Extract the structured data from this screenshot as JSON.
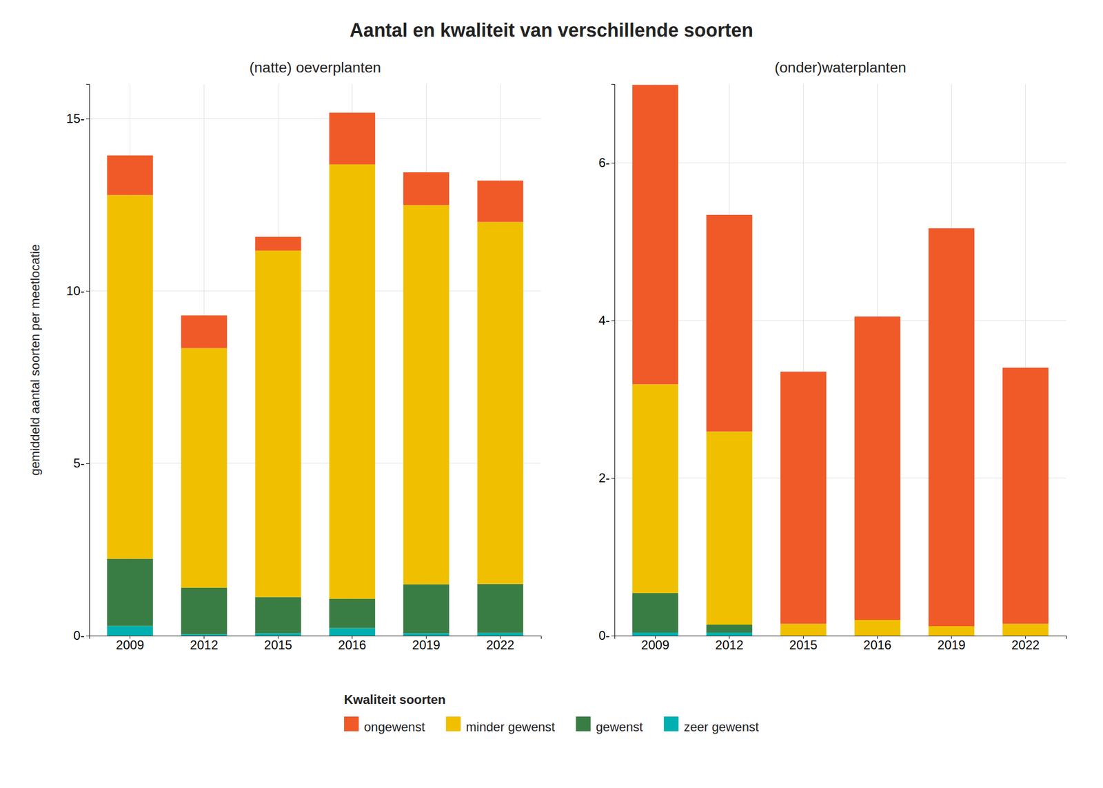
{
  "title": "Aantal en kwaliteit van verschillende soorten",
  "legend_title": "Kwaliteit soorten",
  "legend": "bottom",
  "chart_data": [
    {
      "type": "bar",
      "stacked": true,
      "grid": true,
      "title": "(natte) oeverplanten",
      "ylabel": "gemiddeld aantal soorten per meetlocatie",
      "categories": [
        "2009",
        "2012",
        "2015",
        "2016",
        "2019",
        "2022"
      ],
      "series": [
        {
          "name": "zeer gewenst",
          "color": "#00B0B0",
          "values": [
            0.28,
            0.04,
            0.07,
            0.22,
            0.07,
            0.08
          ]
        },
        {
          "name": "gewenst",
          "color": "#3A7D44",
          "values": [
            1.95,
            1.35,
            1.05,
            0.85,
            1.42,
            1.42
          ]
        },
        {
          "name": "minder gewenst",
          "color": "#F0C000",
          "values": [
            10.55,
            6.95,
            10.05,
            12.6,
            11.0,
            10.5
          ]
        },
        {
          "name": "ongewenst",
          "color": "#F05A28",
          "values": [
            1.15,
            0.95,
            0.4,
            1.5,
            0.95,
            1.2
          ]
        }
      ],
      "ylim": [
        0,
        16
      ],
      "yticks": [
        {
          "value": 0,
          "label": "0-"
        },
        {
          "value": 5,
          "label": "5-"
        },
        {
          "value": 10,
          "label": "10-"
        },
        {
          "value": 15,
          "label": "15-"
        }
      ]
    },
    {
      "type": "bar",
      "stacked": true,
      "grid": true,
      "title": "(onder)waterplanten",
      "categories": [
        "2009",
        "2012",
        "2015",
        "2016",
        "2019",
        "2022"
      ],
      "series": [
        {
          "name": "zeer gewenst",
          "color": "#00B0B0",
          "values": [
            0.04,
            0.04,
            0.0,
            0.0,
            0.0,
            0.0
          ]
        },
        {
          "name": "gewenst",
          "color": "#3A7D44",
          "values": [
            0.5,
            0.1,
            0.0,
            0.0,
            0.0,
            0.0
          ]
        },
        {
          "name": "minder gewenst",
          "color": "#F0C000",
          "values": [
            2.65,
            2.45,
            0.15,
            0.2,
            0.12,
            0.15
          ]
        },
        {
          "name": "ongewenst",
          "color": "#F05A28",
          "values": [
            3.8,
            2.75,
            3.2,
            3.85,
            5.05,
            3.25
          ]
        }
      ],
      "ylim": [
        0,
        7
      ],
      "yticks": [
        {
          "value": 0,
          "label": "0-"
        },
        {
          "value": 2,
          "label": "2-"
        },
        {
          "value": 4,
          "label": "4-"
        },
        {
          "value": 6,
          "label": "6-"
        }
      ]
    }
  ]
}
